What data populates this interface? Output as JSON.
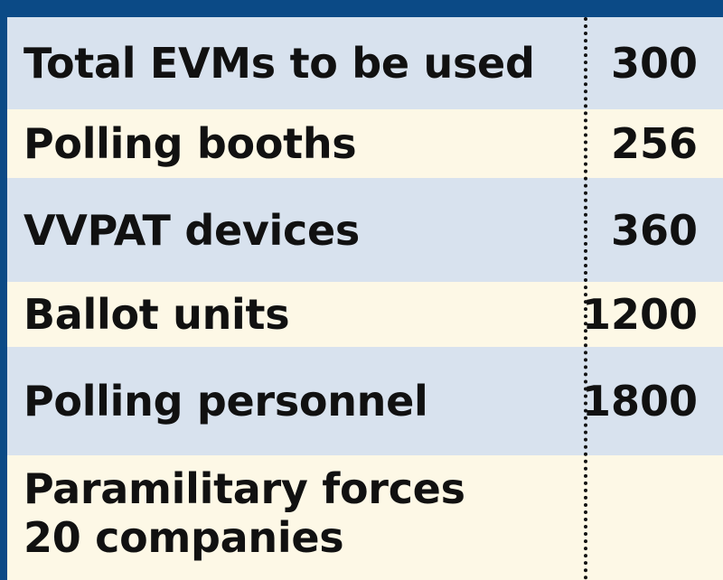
{
  "colors": {
    "header_band": "#0b4a86",
    "row_blue": "#d8e2ee",
    "row_cream": "#fdf8e6",
    "text": "#111111"
  },
  "rows": [
    {
      "label": "Total EVMs to be used",
      "value": "300"
    },
    {
      "label": "Polling booths",
      "value": "256"
    },
    {
      "label": "VVPAT devices",
      "value": "360"
    },
    {
      "label": "Ballot units",
      "value": "1200"
    },
    {
      "label": "Polling personnel",
      "value": "1800"
    },
    {
      "label": "Paramilitary forces\n20 companies",
      "value": ""
    }
  ]
}
